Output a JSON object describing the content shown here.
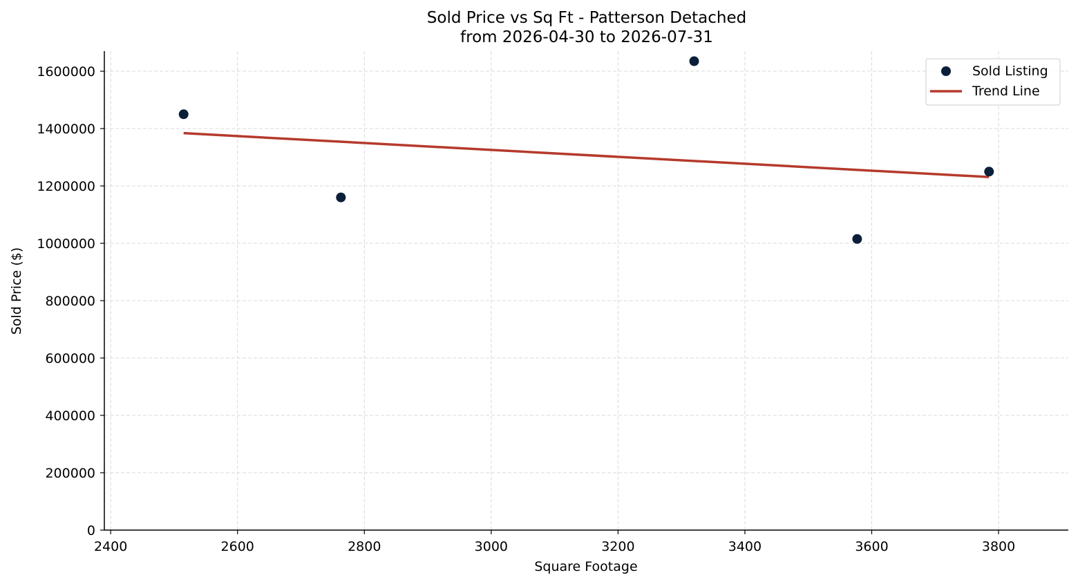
{
  "chart_data": {
    "type": "scatter",
    "title_line1": "Sold Price vs Sq Ft - Patterson Detached",
    "title_line2": "from 2026-04-30 to 2026-07-31",
    "xlabel": "Square Footage",
    "ylabel": "Sold Price ($)",
    "xlim": [
      2390,
      3910
    ],
    "ylim": [
      0,
      1670000
    ],
    "xticks": [
      2400,
      2600,
      2800,
      3000,
      3200,
      3400,
      3600,
      3800
    ],
    "yticks": [
      0,
      200000,
      400000,
      600000,
      800000,
      1000000,
      1200000,
      1400000,
      1600000
    ],
    "grid": true,
    "legend_position": "top-right",
    "series": [
      {
        "name": "Sold Listing",
        "kind": "scatter",
        "color": "#0b1f3a",
        "points": [
          {
            "x": 2515,
            "y": 1450000
          },
          {
            "x": 2763,
            "y": 1160000
          },
          {
            "x": 3320,
            "y": 1635000
          },
          {
            "x": 3577,
            "y": 1015000
          },
          {
            "x": 3785,
            "y": 1250000
          }
        ]
      },
      {
        "name": "Trend Line",
        "kind": "line",
        "color": "#b53a2c",
        "points": [
          {
            "x": 2515,
            "y": 1384000
          },
          {
            "x": 3785,
            "y": 1231000
          }
        ]
      }
    ]
  }
}
